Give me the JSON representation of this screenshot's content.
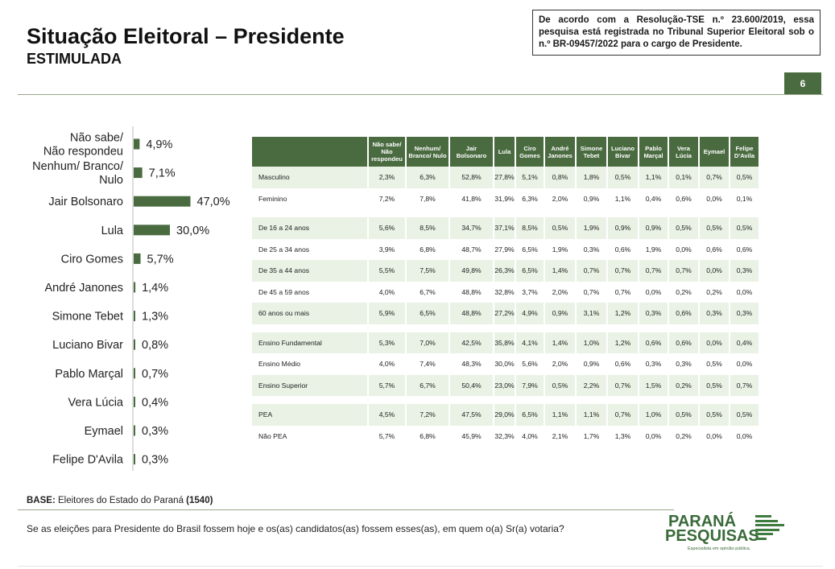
{
  "header": {
    "title": "Situação Eleitoral – Presidente",
    "subtitle": "ESTIMULADA",
    "notice": "De acordo com a Resolução-TSE n.º 23.600/2019, essa pesquisa está registrada no Tribunal Superior Eleitoral sob o n.º BR-09457/2022 para o cargo de Presidente.",
    "page_number": "6"
  },
  "colors": {
    "accent": "#4a6b40",
    "row_alt": "#e9f2e4"
  },
  "chart_data": {
    "type": "bar",
    "orientation": "horizontal",
    "categories": [
      [
        "Não sabe/",
        "Não respondeu"
      ],
      [
        "Nenhum/ Branco/",
        "Nulo"
      ],
      [
        "Jair Bolsonaro"
      ],
      [
        "Lula"
      ],
      [
        "Ciro Gomes"
      ],
      [
        "André Janones"
      ],
      [
        "Simone Tebet"
      ],
      [
        "Luciano Bivar"
      ],
      [
        "Pablo Marçal"
      ],
      [
        "Vera Lúcia"
      ],
      [
        "Eymael"
      ],
      [
        "Felipe D'Avila"
      ]
    ],
    "values": [
      4.9,
      7.1,
      47.0,
      30.0,
      5.7,
      1.4,
      1.3,
      0.8,
      0.7,
      0.4,
      0.3,
      0.3
    ],
    "value_labels": [
      "4,9%",
      "7,1%",
      "47,0%",
      "30,0%",
      "5,7%",
      "1,4%",
      "1,3%",
      "0,8%",
      "0,7%",
      "0,4%",
      "0,3%",
      "0,3%"
    ],
    "xlim": [
      0,
      50
    ],
    "bar_color": "#4a6b40",
    "grid": false
  },
  "table": {
    "columns": [
      "Não sabe/ Não respondeu",
      "Nenhum/ Branco/ Nulo",
      "Jair Bolsonaro",
      "Lula",
      "Ciro Gomes",
      "André Janones",
      "Simone Tebet",
      "Luciano Bivar",
      "Pablo Marçal",
      "Vera Lúcia",
      "Eymael",
      "Felipe D'Avila"
    ],
    "groups": [
      {
        "rows": [
          {
            "label": "Masculino",
            "values": [
              "2,3%",
              "6,3%",
              "52,8%",
              "27,8%",
              "5,1%",
              "0,8%",
              "1,8%",
              "0,5%",
              "1,1%",
              "0,1%",
              "0,7%",
              "0,5%"
            ]
          },
          {
            "label": "Feminino",
            "values": [
              "7,2%",
              "7,8%",
              "41,8%",
              "31,9%",
              "6,3%",
              "2,0%",
              "0,9%",
              "1,1%",
              "0,4%",
              "0,6%",
              "0,0%",
              "0,1%"
            ]
          }
        ]
      },
      {
        "rows": [
          {
            "label": "De 16 a 24 anos",
            "values": [
              "5,6%",
              "8,5%",
              "34,7%",
              "37,1%",
              "8,5%",
              "0,5%",
              "1,9%",
              "0,9%",
              "0,9%",
              "0,5%",
              "0,5%",
              "0,5%"
            ]
          },
          {
            "label": "De 25 a 34 anos",
            "values": [
              "3,9%",
              "6,8%",
              "48,7%",
              "27,9%",
              "6,5%",
              "1,9%",
              "0,3%",
              "0,6%",
              "1,9%",
              "0,0%",
              "0,6%",
              "0,6%"
            ]
          },
          {
            "label": "De 35 a 44 anos",
            "values": [
              "5,5%",
              "7,5%",
              "49,8%",
              "26,3%",
              "6,5%",
              "1,4%",
              "0,7%",
              "0,7%",
              "0,7%",
              "0,7%",
              "0,0%",
              "0,3%"
            ]
          },
          {
            "label": "De 45 a 59 anos",
            "values": [
              "4,0%",
              "6,7%",
              "48,8%",
              "32,8%",
              "3,7%",
              "2,0%",
              "0,7%",
              "0,7%",
              "0,0%",
              "0,2%",
              "0,2%",
              "0,0%"
            ]
          },
          {
            "label": "60 anos ou mais",
            "values": [
              "5,9%",
              "6,5%",
              "48,8%",
              "27,2%",
              "4,9%",
              "0,9%",
              "3,1%",
              "1,2%",
              "0,3%",
              "0,6%",
              "0,3%",
              "0,3%"
            ]
          }
        ]
      },
      {
        "rows": [
          {
            "label": "Ensino Fundamental",
            "values": [
              "5,3%",
              "7,0%",
              "42,5%",
              "35,8%",
              "4,1%",
              "1,4%",
              "1,0%",
              "1,2%",
              "0,6%",
              "0,6%",
              "0,0%",
              "0,4%"
            ]
          },
          {
            "label": "Ensino Médio",
            "values": [
              "4,0%",
              "7,4%",
              "48,3%",
              "30,0%",
              "5,6%",
              "2,0%",
              "0,9%",
              "0,6%",
              "0,3%",
              "0,3%",
              "0,5%",
              "0,0%"
            ]
          },
          {
            "label": "Ensino Superior",
            "values": [
              "5,7%",
              "6,7%",
              "50,4%",
              "23,0%",
              "7,9%",
              "0,5%",
              "2,2%",
              "0,7%",
              "1,5%",
              "0,2%",
              "0,5%",
              "0,7%"
            ]
          }
        ]
      },
      {
        "rows": [
          {
            "label": "PEA",
            "values": [
              "4,5%",
              "7,2%",
              "47,5%",
              "29,0%",
              "6,5%",
              "1,1%",
              "1,1%",
              "0,7%",
              "1,0%",
              "0,5%",
              "0,5%",
              "0,5%"
            ]
          },
          {
            "label": "Não PEA",
            "values": [
              "5,7%",
              "6,8%",
              "45,9%",
              "32,3%",
              "4,0%",
              "2,1%",
              "1,7%",
              "1,3%",
              "0,0%",
              "0,2%",
              "0,0%",
              "0,0%"
            ]
          }
        ]
      }
    ]
  },
  "footer": {
    "base_label": "BASE:",
    "base_text": " Eleitores do Estado do Paraná ",
    "base_n": "(1540)",
    "question": "Se as eleições para Presidente do Brasil fossem hoje e os(as) candidatos(as) fossem esses(as), em quem o(a) Sr(a) votaria?"
  },
  "logo": {
    "line1": "PARANÁ",
    "line2": "PESQUISAS",
    "tagline": "Especialista em opinião pública."
  }
}
